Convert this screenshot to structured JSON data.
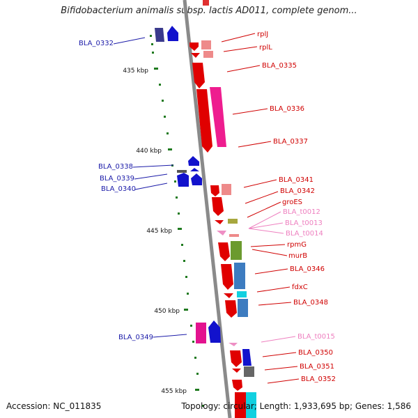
{
  "title": "Bifidobacterium animalis subsp. lactis AD011, complete genom...",
  "footer": {
    "accession": "Accession: NC_011835",
    "summary": "Topology: circular; Length: 1,933,695 bp; Genes: 1,586"
  },
  "colors": {
    "backbone": "#8a8a8a",
    "ruler": "#1f7a1f",
    "left_label": "#1a1aa8",
    "right_label": "#d00000",
    "trna_label": "#ee7fbf"
  },
  "scale": [
    {
      "label": "435 kbp"
    },
    {
      "label": "440 kbp"
    },
    {
      "label": "445 kbp"
    },
    {
      "label": "450 kbp"
    },
    {
      "label": "455 kbp"
    }
  ],
  "left_genes": [
    {
      "label": "BLA_0332"
    },
    {
      "label": "BLA_0338"
    },
    {
      "label": "BLA_0339"
    },
    {
      "label": "BLA_0340"
    },
    {
      "label": "BLA_0349"
    }
  ],
  "right_genes": [
    {
      "label": "rplJ"
    },
    {
      "label": "rplL"
    },
    {
      "label": "BLA_0335"
    },
    {
      "label": "BLA_0336"
    },
    {
      "label": "BLA_0337"
    },
    {
      "label": "BLA_0341"
    },
    {
      "label": "BLA_0342"
    },
    {
      "label": "groES"
    },
    {
      "label": "BLA_t0012"
    },
    {
      "label": "BLA_t0013"
    },
    {
      "label": "BLA_t0014"
    },
    {
      "label": "rpmG"
    },
    {
      "label": "murB"
    },
    {
      "label": "BLA_0346"
    },
    {
      "label": "fdxC"
    },
    {
      "label": "BLA_0348"
    },
    {
      "label": "BLA_t0015"
    },
    {
      "label": "BLA_0350"
    },
    {
      "label": "BLA_0351"
    },
    {
      "label": "BLA_0352"
    }
  ]
}
